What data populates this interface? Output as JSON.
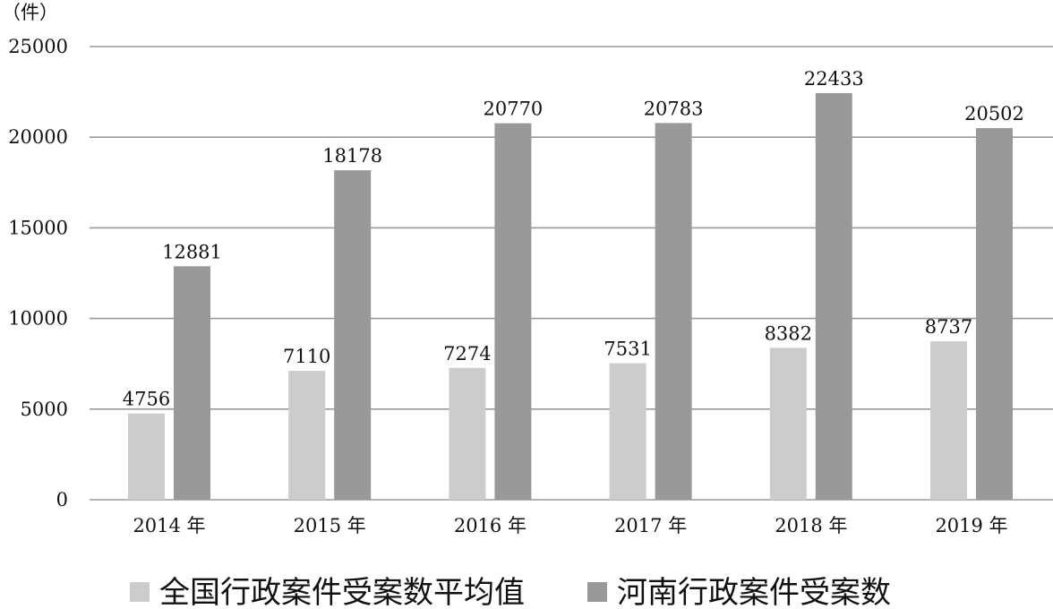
{
  "chart_data": {
    "type": "bar",
    "unit_label": "（件）",
    "categories": [
      "2014 年",
      "2015 年",
      "2016 年",
      "2017 年",
      "2018 年",
      "2019 年"
    ],
    "series": [
      {
        "name": "全国行政案件受案数平均值",
        "color": "#cccccc",
        "values": [
          4756,
          7110,
          7274,
          7531,
          8382,
          8737
        ]
      },
      {
        "name": "河南行政案件受案数",
        "color": "#999999",
        "values": [
          12881,
          18178,
          20770,
          20783,
          22433,
          20502
        ]
      }
    ],
    "ylim": [
      0,
      25000
    ],
    "yticks": [
      "0",
      "5000",
      "10000",
      "15000",
      "20000",
      "25000"
    ],
    "grid": true,
    "legend_position": "bottom"
  }
}
